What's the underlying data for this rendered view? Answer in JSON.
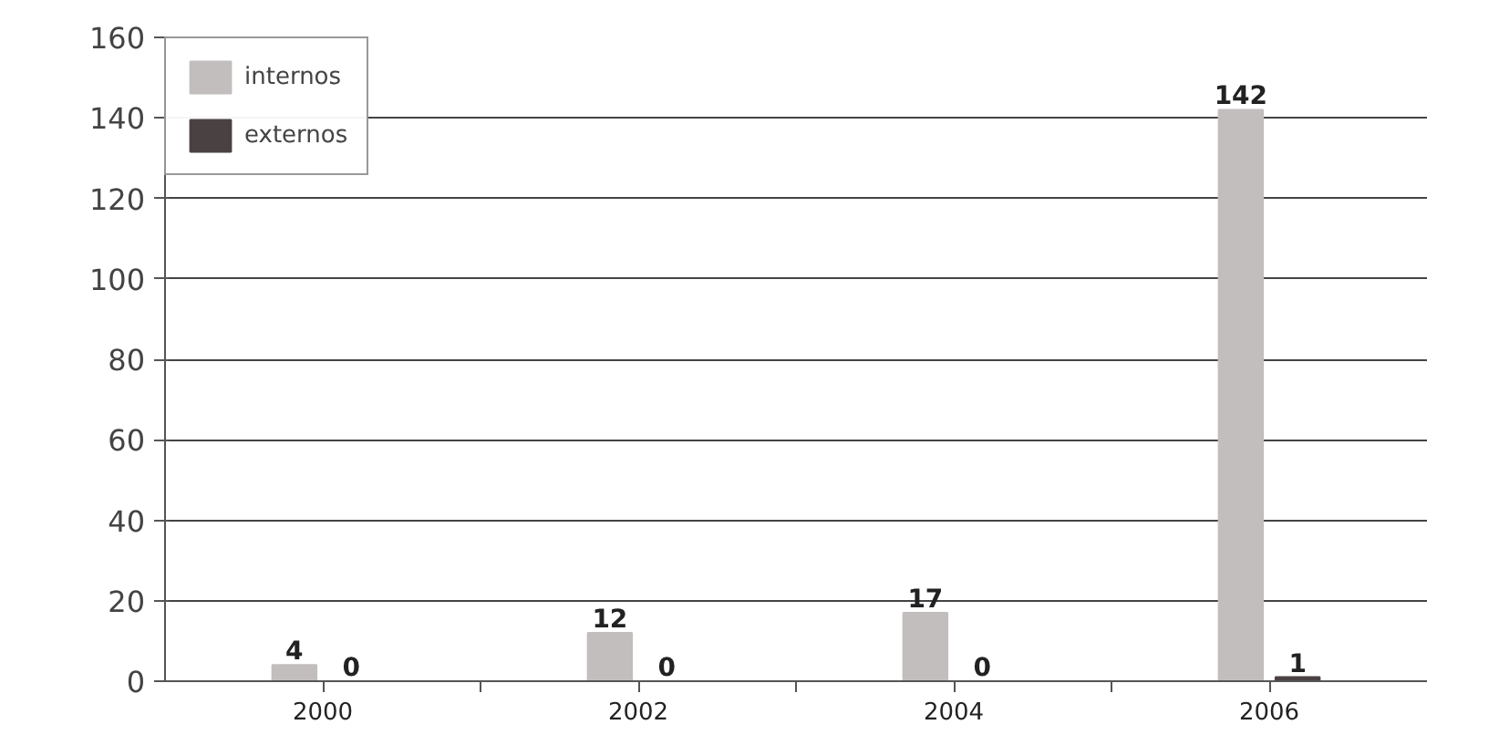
{
  "chart_data": {
    "type": "bar",
    "categories": [
      "2000",
      "2002",
      "2004",
      "2006"
    ],
    "series": [
      {
        "name": "internos",
        "color": "#c2bebe",
        "values": [
          4,
          12,
          17,
          142
        ]
      },
      {
        "name": "externos",
        "color": "#4a4242",
        "values": [
          0,
          0,
          0,
          1
        ]
      }
    ],
    "ylim": [
      0,
      160
    ],
    "yticks": [
      0,
      20,
      40,
      60,
      80,
      100,
      120,
      140,
      160
    ],
    "grid": "y",
    "legend": "top left",
    "data_labels": true
  }
}
